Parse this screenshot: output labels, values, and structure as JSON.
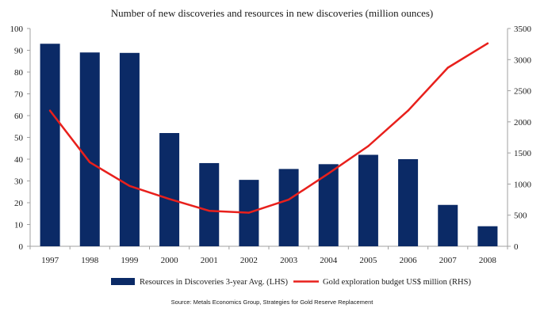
{
  "chart_data": {
    "type": "bar",
    "title": "Number of new discoveries and resources in new discoveries (million ounces)",
    "categories": [
      "1997",
      "1998",
      "1999",
      "2000",
      "2001",
      "2002",
      "2003",
      "2004",
      "2005",
      "2006",
      "2007",
      "2008"
    ],
    "series": [
      {
        "name": "Resources in Discoveries 3-year Avg. (LHS)",
        "type": "bar",
        "axis": "left",
        "color": "#0b2a66",
        "values": [
          93,
          89,
          88.8,
          52,
          38.2,
          30.5,
          35.5,
          37.7,
          42,
          40,
          19,
          9.2
        ]
      },
      {
        "name": "Gold exploration budget US$ million (RHS)",
        "type": "line",
        "axis": "right",
        "color": "#e8201c",
        "values": [
          2180,
          1350,
          970,
          760,
          570,
          540,
          750,
          1170,
          1610,
          2180,
          2870,
          3260
        ]
      }
    ],
    "left_axis": {
      "ylim": [
        0,
        100
      ],
      "ticks": [
        "0",
        "10",
        "20",
        "30",
        "40",
        "50",
        "60",
        "70",
        "80",
        "90",
        "100"
      ]
    },
    "right_axis": {
      "ylim": [
        0,
        3500
      ],
      "ticks": [
        "0",
        "500",
        "1000",
        "1500",
        "2000",
        "2500",
        "3000",
        "3500"
      ]
    },
    "grid": false,
    "legend_position": "bottom",
    "source": "Source: Metals Economics Group, Strategies for Gold Reserve Replacement"
  }
}
